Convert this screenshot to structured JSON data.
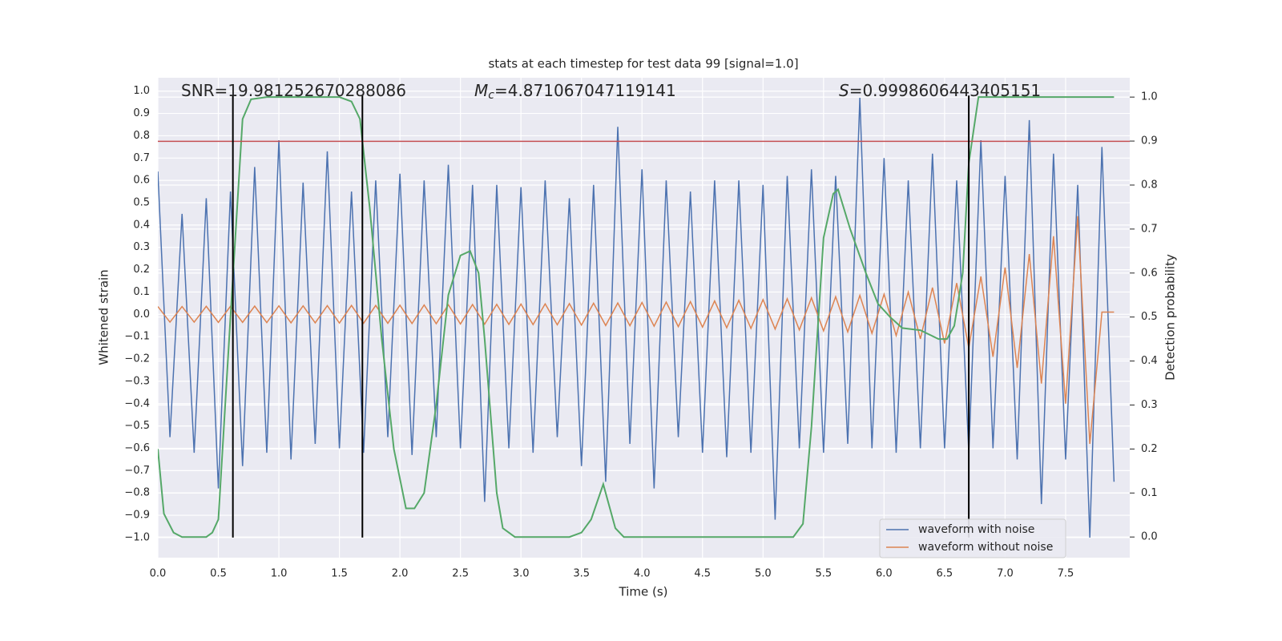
{
  "chart_data": {
    "type": "line",
    "title": "stats at each timestep for test data 99 [signal=1.0]",
    "xlabel": "Time (s)",
    "ylabel": "Whitened strain",
    "y2label": "Detection probability",
    "annotations": [
      {
        "text": "SNR=19.981252670288086"
      },
      {
        "symbol": "M",
        "subscript": "c",
        "text": "=4.871067047119141"
      },
      {
        "symbol": "S",
        "text": "=0.9998606443405151"
      }
    ],
    "xlim": [
      0,
      8.03
    ],
    "ylim": [
      -1.09,
      1.06
    ],
    "y2lim": [
      -0.047,
      1.044
    ],
    "grid": true,
    "legend": "lower right",
    "xticks": [
      {
        "value": 0,
        "label": "0.0"
      },
      0.5,
      {
        "value": 1,
        "label": "1.0"
      },
      1.5,
      {
        "value": 2,
        "label": "2.0"
      },
      2.5,
      {
        "value": 3,
        "label": "3.0"
      },
      3.5,
      {
        "value": 4,
        "label": "4.0"
      },
      4.5,
      {
        "value": 5,
        "label": "5.0"
      },
      5.5,
      {
        "value": 6,
        "label": "6.0"
      },
      6.5,
      {
        "value": 7,
        "label": "7.0"
      },
      7.5
    ],
    "yticks": [
      {
        "value": 1,
        "label": "1.0"
      },
      0.9,
      0.8,
      0.7,
      0.6,
      0.5,
      0.4,
      0.3,
      0.2,
      0.1,
      {
        "value": 0,
        "label": "0.0"
      },
      {
        "value": -0.1,
        "label": "−0.1"
      },
      {
        "value": -0.2,
        "label": "−0.2"
      },
      {
        "value": -0.3,
        "label": "−0.3"
      },
      {
        "value": -0.4,
        "label": "−0.4"
      },
      {
        "value": -0.5,
        "label": "−0.5"
      },
      {
        "value": -0.6,
        "label": "−0.6"
      },
      {
        "value": -0.7,
        "label": "−0.7"
      },
      {
        "value": -0.8,
        "label": "−0.8"
      },
      {
        "value": -0.9,
        "label": "−0.9"
      },
      {
        "value": -1,
        "label": "−1.0"
      }
    ],
    "y2ticks": [
      {
        "value": 0,
        "label": "0.0"
      },
      0.1,
      0.2,
      0.3,
      0.4,
      0.5,
      0.6,
      0.7,
      0.8,
      0.9,
      {
        "value": 1,
        "label": "1.0"
      }
    ],
    "x": [
      0.0,
      0.1,
      0.2,
      0.3,
      0.4,
      0.5,
      0.6,
      0.7,
      0.8,
      0.9,
      1.0,
      1.1,
      1.2,
      1.3,
      1.4,
      1.5,
      1.6,
      1.7,
      1.8,
      1.9,
      2.0,
      2.1,
      2.2,
      2.3,
      2.4,
      2.5,
      2.6,
      2.7,
      2.8,
      2.9,
      3.0,
      3.1,
      3.2,
      3.3,
      3.4,
      3.5,
      3.6,
      3.7,
      3.8,
      3.9,
      4.0,
      4.1,
      4.2,
      4.3,
      4.4,
      4.5,
      4.6,
      4.7,
      4.8,
      4.9,
      5.0,
      5.1,
      5.2,
      5.3,
      5.4,
      5.5,
      5.6,
      5.7,
      5.8,
      5.9,
      6.0,
      6.1,
      6.2,
      6.3,
      6.4,
      6.5,
      6.6,
      6.7,
      6.8,
      6.9,
      7.0,
      7.1,
      7.2,
      7.3,
      7.4,
      7.5,
      7.6,
      7.7,
      7.8,
      7.9
    ],
    "series": [
      {
        "name": "waveform with noise",
        "color": "#4c72b0",
        "values": [
          0.64,
          -0.55,
          0.45,
          -0.62,
          0.52,
          -0.78,
          0.55,
          -0.68,
          0.66,
          -0.62,
          0.78,
          -0.65,
          0.59,
          -0.58,
          0.73,
          -0.6,
          0.55,
          -0.62,
          0.6,
          -0.55,
          0.63,
          -0.63,
          0.6,
          -0.55,
          0.67,
          -0.6,
          0.58,
          -0.84,
          0.58,
          -0.6,
          0.57,
          -0.62,
          0.6,
          -0.55,
          0.52,
          -0.68,
          0.58,
          -0.75,
          0.84,
          -0.58,
          0.65,
          -0.78,
          0.6,
          -0.55,
          0.55,
          -0.62,
          0.6,
          -0.64,
          0.6,
          -0.62,
          0.58,
          -0.92,
          0.62,
          -0.6,
          0.65,
          -0.62,
          0.62,
          -0.58,
          0.97,
          -0.6,
          0.7,
          -0.62,
          0.6,
          -0.6,
          0.72,
          -0.6,
          0.6,
          -0.62,
          0.78,
          -0.6,
          0.62,
          -0.65,
          0.87,
          -0.85,
          0.72,
          -0.65,
          0.58,
          -1.0,
          0.75,
          -0.75
        ]
      },
      {
        "name": "waveform without noise",
        "color": "#dd8452",
        "values": [
          0.035,
          -0.035,
          0.035,
          -0.035,
          0.036,
          -0.036,
          0.036,
          -0.036,
          0.037,
          -0.037,
          0.038,
          -0.038,
          0.038,
          -0.038,
          0.039,
          -0.039,
          0.04,
          -0.04,
          0.04,
          -0.04,
          0.041,
          -0.041,
          0.042,
          -0.042,
          0.043,
          -0.043,
          0.044,
          -0.044,
          0.045,
          -0.045,
          0.046,
          -0.046,
          0.047,
          -0.047,
          0.048,
          -0.048,
          0.05,
          -0.05,
          0.051,
          -0.051,
          0.053,
          -0.053,
          0.055,
          -0.055,
          0.057,
          -0.057,
          0.06,
          -0.06,
          0.063,
          -0.063,
          0.066,
          -0.066,
          0.07,
          -0.07,
          0.074,
          -0.074,
          0.079,
          -0.079,
          0.085,
          -0.085,
          0.09,
          -0.095,
          0.1,
          -0.11,
          0.12,
          -0.13,
          0.14,
          -0.15,
          0.17,
          -0.19,
          0.21,
          -0.24,
          0.27,
          -0.31,
          0.35,
          -0.4,
          0.44,
          -0.58,
          0.01,
          0.01
        ]
      }
    ],
    "probability": {
      "color": "#55a868",
      "axis": "y2",
      "x": [
        0,
        0.05,
        0.13,
        0.2,
        0.4,
        0.45,
        0.5,
        0.6,
        0.7,
        0.77,
        0.9,
        1.5,
        1.6,
        1.67,
        1.75,
        1.85,
        1.95,
        2.05,
        2.12,
        2.2,
        2.3,
        2.4,
        2.5,
        2.58,
        2.65,
        2.7,
        2.8,
        2.85,
        2.95,
        3.4,
        3.5,
        3.58,
        3.68,
        3.78,
        3.85,
        5.25,
        5.33,
        5.4,
        5.5,
        5.58,
        5.62,
        5.72,
        5.85,
        5.95,
        6.05,
        6.15,
        6.3,
        6.45,
        6.52,
        6.58,
        6.65,
        6.7,
        6.78,
        7.9
      ],
      "values": [
        0.2,
        0.053,
        0.01,
        0.0,
        0.0,
        0.01,
        0.04,
        0.5,
        0.95,
        0.995,
        1.0,
        1.0,
        0.99,
        0.95,
        0.75,
        0.45,
        0.2,
        0.065,
        0.065,
        0.1,
        0.3,
        0.55,
        0.64,
        0.65,
        0.6,
        0.45,
        0.1,
        0.02,
        0.0,
        0.0,
        0.01,
        0.04,
        0.12,
        0.02,
        0.0,
        0.0,
        0.03,
        0.25,
        0.68,
        0.78,
        0.79,
        0.7,
        0.6,
        0.53,
        0.5,
        0.475,
        0.47,
        0.45,
        0.45,
        0.48,
        0.6,
        0.85,
        1.0,
        1.0
      ]
    },
    "vlines": [
      0.62,
      1.69,
      6.7
    ],
    "vline_range": [
      -1.0,
      0.98
    ],
    "vline_color": "#000000",
    "hline": 0.775,
    "hline_color": "#c44e52"
  }
}
